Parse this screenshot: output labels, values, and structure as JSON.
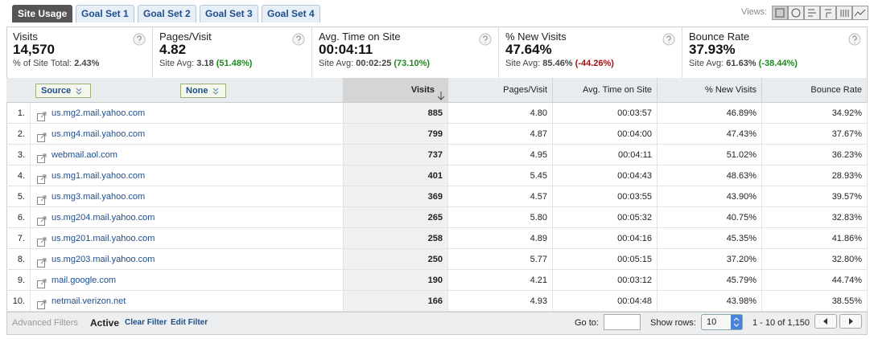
{
  "tabs": [
    "Site Usage",
    "Goal Set 1",
    "Goal Set 2",
    "Goal Set 3",
    "Goal Set 4"
  ],
  "views_label": "Views:",
  "metrics": [
    {
      "label": "Visits",
      "value": "14,570",
      "sub_label": "% of Site Total:",
      "sub_value": "2.43%"
    },
    {
      "label": "Pages/Visit",
      "value": "4.82",
      "sub_label": "Site Avg:",
      "sub_value": "3.18",
      "sub_change": "(51.48%)",
      "change_color": "#1a8a1a"
    },
    {
      "label": "Avg. Time on Site",
      "value": "00:04:11",
      "sub_label": "Site Avg:",
      "sub_value": "00:02:25",
      "sub_change": "(73.10%)",
      "change_color": "#1a8a1a"
    },
    {
      "label": "% New Visits",
      "value": "47.64%",
      "sub_label": "Site Avg:",
      "sub_value": "85.46%",
      "sub_change": "(-44.26%)",
      "change_color": "#a01010"
    },
    {
      "label": "Bounce Rate",
      "value": "37.93%",
      "sub_label": "Site Avg:",
      "sub_value": "61.63%",
      "sub_change": "(-38.44%)",
      "change_color": "#1a8a1a"
    }
  ],
  "table": {
    "dimension": "Source",
    "secondary": "None",
    "columns": [
      "Visits",
      "Pages/Visit",
      "Avg. Time on Site",
      "% New Visits",
      "Bounce Rate"
    ],
    "rows": [
      {
        "index": "1.",
        "source": "us.mg2.mail.yahoo.com",
        "cells": [
          "885",
          "4.80",
          "00:03:57",
          "46.89%",
          "34.92%"
        ]
      },
      {
        "index": "2.",
        "source": "us.mg4.mail.yahoo.com",
        "cells": [
          "799",
          "4.87",
          "00:04:00",
          "47.43%",
          "37.67%"
        ]
      },
      {
        "index": "3.",
        "source": "webmail.aol.com",
        "cells": [
          "737",
          "4.95",
          "00:04:11",
          "51.02%",
          "36.23%"
        ]
      },
      {
        "index": "4.",
        "source": "us.mg1.mail.yahoo.com",
        "cells": [
          "401",
          "5.45",
          "00:04:43",
          "48.63%",
          "28.93%"
        ]
      },
      {
        "index": "5.",
        "source": "us.mg3.mail.yahoo.com",
        "cells": [
          "369",
          "4.57",
          "00:03:55",
          "43.90%",
          "39.57%"
        ]
      },
      {
        "index": "6.",
        "source": "us.mg204.mail.yahoo.com",
        "cells": [
          "265",
          "5.80",
          "00:05:32",
          "40.75%",
          "32.83%"
        ]
      },
      {
        "index": "7.",
        "source": "us.mg201.mail.yahoo.com",
        "cells": [
          "258",
          "4.89",
          "00:04:16",
          "45.35%",
          "41.86%"
        ]
      },
      {
        "index": "8.",
        "source": "us.mg203.mail.yahoo.com",
        "cells": [
          "250",
          "5.77",
          "00:05:15",
          "37.20%",
          "32.80%"
        ]
      },
      {
        "index": "9.",
        "source": "mail.google.com",
        "cells": [
          "190",
          "4.21",
          "00:03:12",
          "45.79%",
          "44.74%"
        ]
      },
      {
        "index": "10.",
        "source": "netmail.verizon.net",
        "cells": [
          "166",
          "4.93",
          "00:04:48",
          "43.98%",
          "38.55%"
        ]
      }
    ]
  },
  "footer": {
    "advanced_filters": "Advanced Filters",
    "active": "Active",
    "clear_filter": "Clear Filter",
    "edit_filter": "Edit Filter",
    "goto_label": "Go to:",
    "show_rows_label": "Show rows:",
    "show_rows_value": "10",
    "range": "1 - 10 of 1,150"
  }
}
